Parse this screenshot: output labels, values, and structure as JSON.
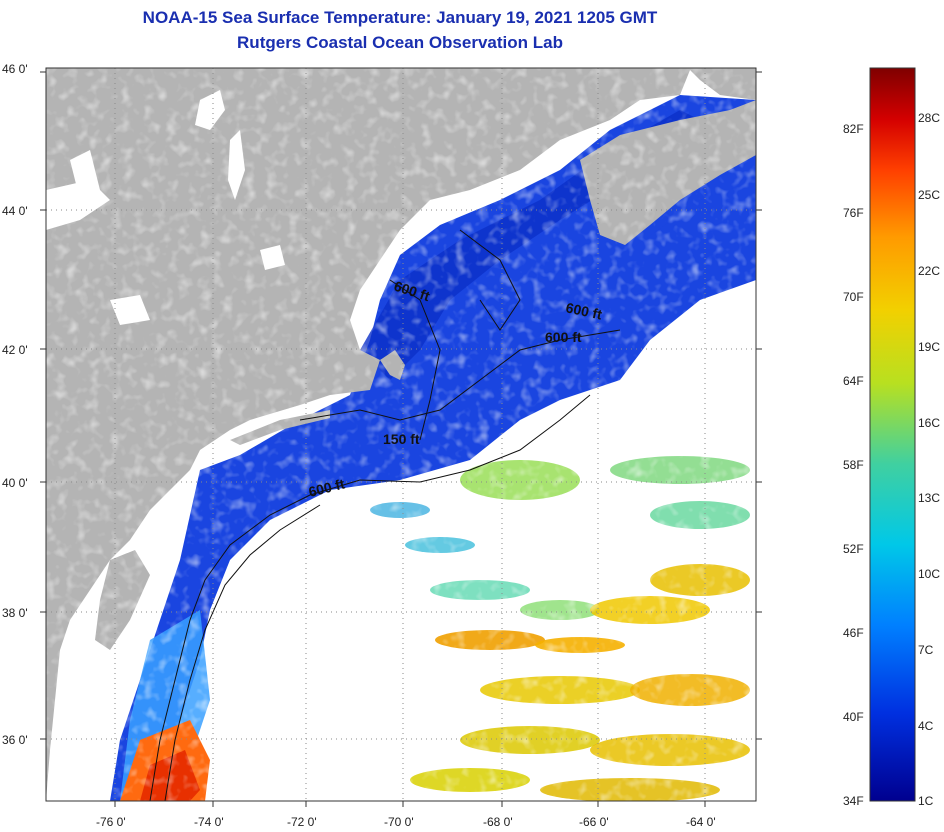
{
  "title": {
    "line1": "NOAA-15 Sea Surface Temperature:  January 19, 2021 1205 GMT",
    "line2": "Rutgers Coastal Ocean Observation Lab"
  },
  "map": {
    "lat_labels": [
      "46 0'",
      "44 0'",
      "42 0'",
      "40 0'",
      "38 0'",
      "36 0'"
    ],
    "lon_labels": [
      "-76 0'",
      "-74 0'",
      "-72 0'",
      "-70 0'",
      "-68 0'",
      "-66 0'",
      "-64 0'"
    ],
    "contour_labels": [
      "600 ft",
      "600 ft",
      "600 ft",
      "150 ft",
      "600 ft"
    ]
  },
  "colorbar": {
    "fahrenheit_labels": [
      "82F",
      "76F",
      "70F",
      "64F",
      "58F",
      "52F",
      "46F",
      "40F",
      "34F"
    ],
    "celsius_labels": [
      "28C",
      "25C",
      "22C",
      "19C",
      "16C",
      "13C",
      "10C",
      "7C",
      "4C",
      "1C"
    ],
    "colors": [
      "#7f0000",
      "#d40000",
      "#ff4000",
      "#ff9a00",
      "#f2d000",
      "#b8e020",
      "#40d0a0",
      "#00c8e8",
      "#0080ff",
      "#0030e0",
      "#00008f"
    ]
  },
  "colors": {
    "land": "#b4b4b4",
    "cloud": "#ffffff",
    "title": "#1a2fb0",
    "water_cold": "#1540e0",
    "water_warm": "#e8b800"
  }
}
